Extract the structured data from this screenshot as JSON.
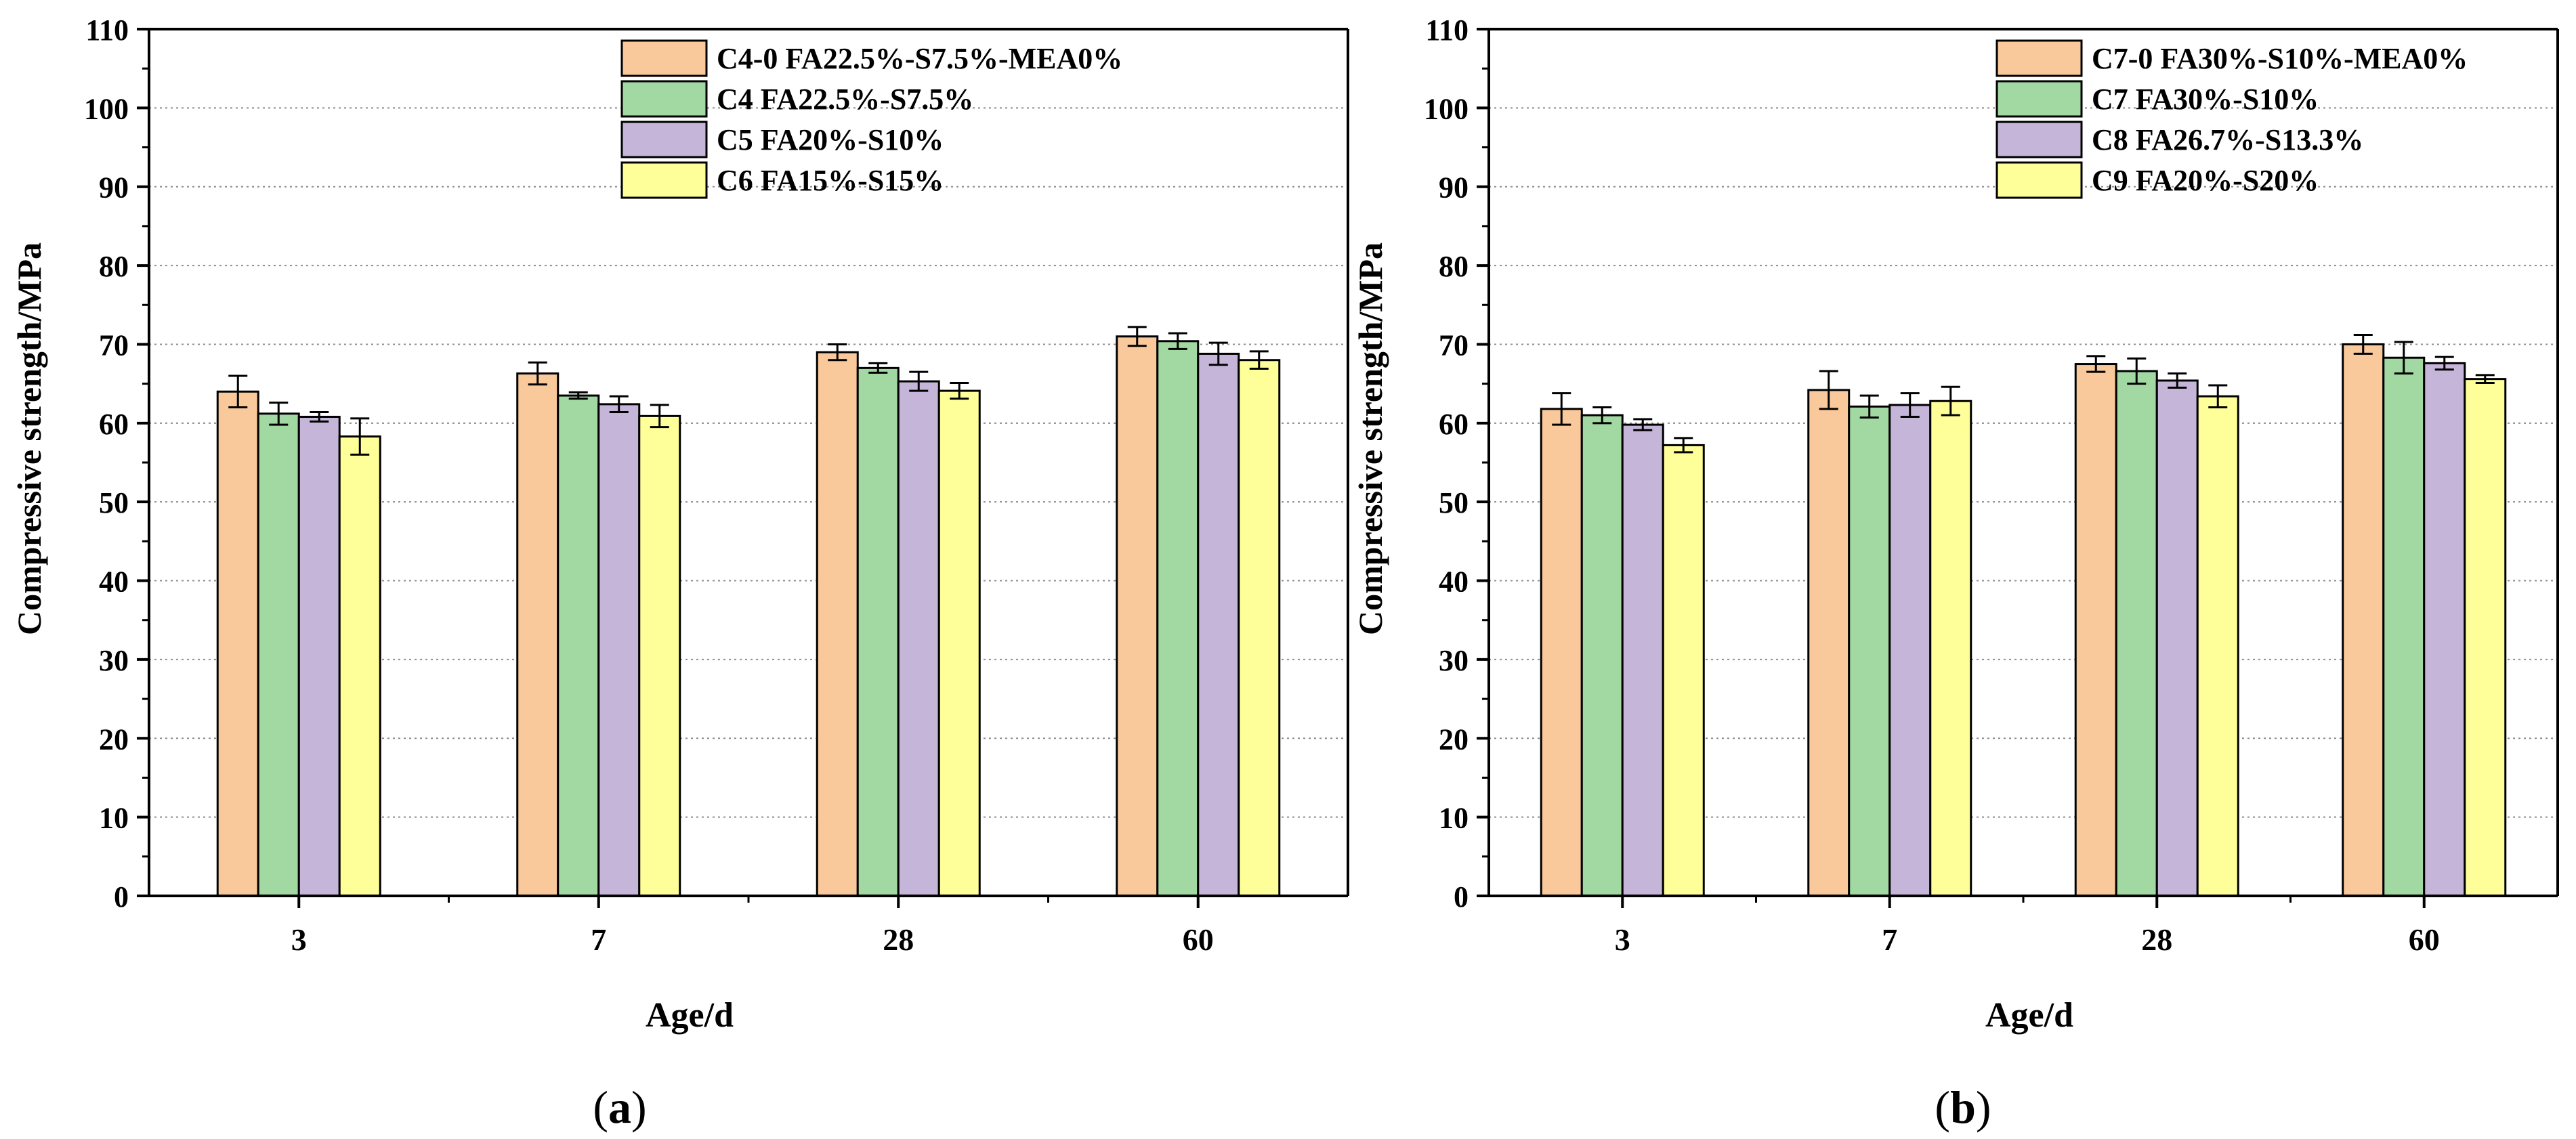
{
  "colors": {
    "orange": "#f9c89b",
    "green": "#a2d9a2",
    "purple": "#c5b5d9",
    "yellow": "#ffff99",
    "axis": "#000000",
    "grid": "#8c8c8c"
  },
  "chart_data": [
    {
      "type": "bar",
      "panel_label": "(a)",
      "panel_letter": "a",
      "xlabel": "Age/d",
      "ylabel": "Compressive strength/MPa",
      "ylim": [
        0,
        110
      ],
      "yticks": [
        "0",
        "10",
        "20",
        "30",
        "40",
        "50",
        "60",
        "70",
        "80",
        "90",
        "100",
        "110"
      ],
      "categories": [
        "3",
        "7",
        "28",
        "60"
      ],
      "grid": true,
      "legend_position": "top-right",
      "series": [
        {
          "name": "C4-0 FA22.5%-S7.5%-MEA0%",
          "color": "orange",
          "values": [
            64.0,
            66.3,
            69.0,
            71.0
          ],
          "errors": [
            2.0,
            1.4,
            1.0,
            1.2
          ]
        },
        {
          "name": "C4 FA22.5%-S7.5%",
          "color": "green",
          "values": [
            61.2,
            63.5,
            67.0,
            70.4
          ],
          "errors": [
            1.4,
            0.4,
            0.6,
            1.0
          ]
        },
        {
          "name": "C5 FA20%-S10%",
          "color": "purple",
          "values": [
            60.8,
            62.4,
            65.3,
            68.8
          ],
          "errors": [
            0.6,
            1.0,
            1.2,
            1.4
          ]
        },
        {
          "name": "C6 FA15%-S15%",
          "color": "yellow",
          "values": [
            58.3,
            60.9,
            64.1,
            68.0
          ],
          "errors": [
            2.3,
            1.4,
            1.0,
            1.1
          ]
        }
      ]
    },
    {
      "type": "bar",
      "panel_label": "(b)",
      "panel_letter": "b",
      "xlabel": "Age/d",
      "ylabel": "Compressive strength/MPa",
      "ylim": [
        0,
        110
      ],
      "yticks": [
        "0",
        "10",
        "20",
        "30",
        "40",
        "50",
        "60",
        "70",
        "80",
        "90",
        "100",
        "110"
      ],
      "categories": [
        "3",
        "7",
        "28",
        "60"
      ],
      "grid": true,
      "legend_position": "top-right",
      "series": [
        {
          "name": "C7-0 FA30%-S10%-MEA0%",
          "color": "orange",
          "values": [
            61.8,
            64.2,
            67.5,
            70.0
          ],
          "errors": [
            2.0,
            2.4,
            1.0,
            1.2
          ]
        },
        {
          "name": "C7 FA30%-S10%",
          "color": "green",
          "values": [
            61.0,
            62.1,
            66.6,
            68.3
          ],
          "errors": [
            1.0,
            1.4,
            1.6,
            2.0
          ]
        },
        {
          "name": "C8 FA26.7%-S13.3%",
          "color": "purple",
          "values": [
            59.8,
            62.3,
            65.4,
            67.6
          ],
          "errors": [
            0.7,
            1.5,
            0.9,
            0.8
          ]
        },
        {
          "name": "C9 FA20%-S20%",
          "color": "yellow",
          "values": [
            57.2,
            62.8,
            63.4,
            65.6
          ],
          "errors": [
            0.9,
            1.8,
            1.4,
            0.5
          ]
        }
      ]
    }
  ]
}
